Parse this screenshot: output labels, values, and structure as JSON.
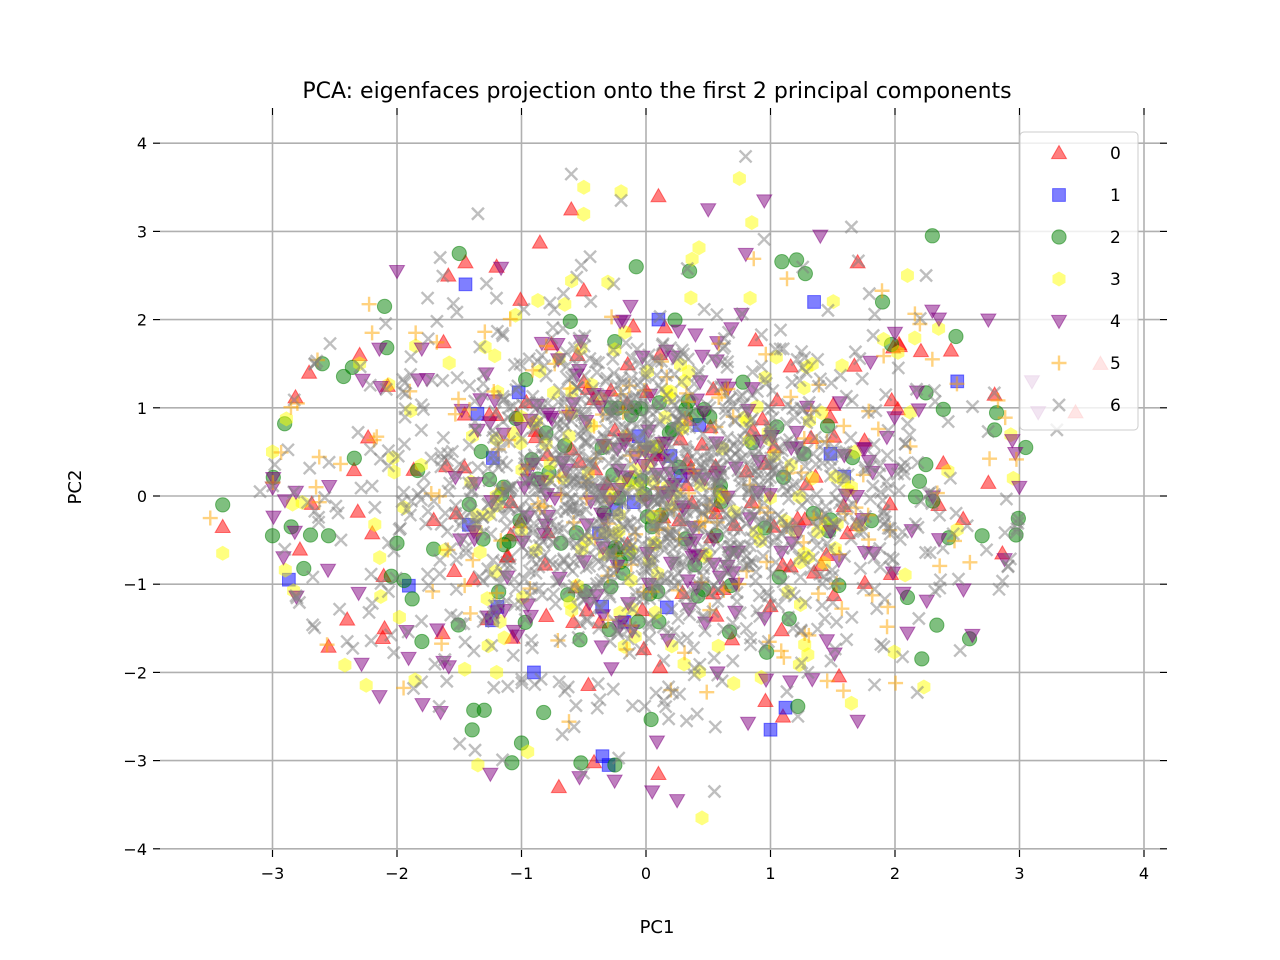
{
  "chart_data": {
    "type": "scatter",
    "title": "PCA: eigenfaces projection onto the first 2 principal components",
    "xlabel": "PC1",
    "ylabel": "PC2",
    "xlim": [
      -3.8,
      4.0
    ],
    "ylim": [
      -4.0,
      4.3
    ],
    "xticks": [
      -3,
      -2,
      -1,
      0,
      1,
      2,
      3,
      4
    ],
    "yticks": [
      -4,
      -3,
      -2,
      -1,
      0,
      1,
      2,
      3,
      4
    ],
    "xtick_labels": [
      "−3",
      "−2",
      "−1",
      "0",
      "1",
      "2",
      "3",
      "4"
    ],
    "ytick_labels": [
      "−4",
      "−3",
      "−2",
      "−1",
      "0",
      "1",
      "2",
      "3",
      "4"
    ],
    "grid": true,
    "legend_position": "top-right",
    "marker_alpha": 0.5,
    "series": [
      {
        "name": "0",
        "color": "#ff0000",
        "marker": "triangle-up",
        "count": 140,
        "points": [
          [
            -3.4,
            -0.35
          ],
          [
            -2.4,
            -1.4
          ],
          [
            -2.1,
            -1.5
          ],
          [
            -1.45,
            2.65
          ],
          [
            -0.6,
            3.25
          ],
          [
            0.1,
            3.4
          ],
          [
            2.45,
            1.65
          ],
          [
            2.8,
            1.15
          ],
          [
            3.65,
            1.5
          ],
          [
            3.45,
            0.95
          ],
          [
            -0.7,
            -3.3
          ],
          [
            0.1,
            -3.15
          ],
          [
            2.35,
            -0.1
          ],
          [
            1.7,
            2.65
          ],
          [
            2.75,
            0.15
          ],
          [
            -1.2,
            2.6
          ],
          [
            -2.3,
            1.6
          ],
          [
            1.1,
            -2.5
          ]
        ]
      },
      {
        "name": "1",
        "color": "#0000ff",
        "marker": "square",
        "count": 20,
        "points": [
          [
            -0.35,
            -2.95
          ],
          [
            -0.3,
            -3.05
          ],
          [
            1.0,
            -2.65
          ],
          [
            1.12,
            -2.4
          ],
          [
            2.5,
            1.3
          ],
          [
            -1.45,
            2.4
          ],
          [
            0.1,
            2.0
          ],
          [
            1.35,
            2.2
          ],
          [
            -0.9,
            -2.0
          ]
        ]
      },
      {
        "name": "2",
        "color": "#008000",
        "marker": "circle",
        "count": 130,
        "points": [
          [
            -3.4,
            -0.1
          ],
          [
            -3.0,
            -0.45
          ],
          [
            -2.85,
            -0.35
          ],
          [
            -2.1,
            2.15
          ],
          [
            -1.5,
            2.75
          ],
          [
            2.3,
            2.95
          ],
          [
            2.8,
            0.75
          ],
          [
            3.05,
            0.55
          ],
          [
            -2.6,
            1.5
          ],
          [
            -0.25,
            -3.05
          ],
          [
            2.7,
            -0.45
          ],
          [
            2.1,
            -1.15
          ],
          [
            -1.0,
            -2.8
          ],
          [
            1.9,
            2.2
          ],
          [
            -1.8,
            -1.65
          ],
          [
            -2.55,
            -0.45
          ],
          [
            0.35,
            2.55
          ]
        ]
      },
      {
        "name": "3",
        "color": "#ffff00",
        "marker": "hexagon",
        "count": 190,
        "points": [
          [
            -3.4,
            -0.65
          ],
          [
            -0.5,
            3.5
          ],
          [
            -0.2,
            3.45
          ],
          [
            0.75,
            3.6
          ],
          [
            0.45,
            -3.65
          ],
          [
            -1.35,
            -3.05
          ],
          [
            2.1,
            2.5
          ],
          [
            2.35,
            1.9
          ],
          [
            2.95,
            0.2
          ],
          [
            -3.0,
            0.5
          ],
          [
            -1.2,
            -2.0
          ],
          [
            1.3,
            -1.8
          ],
          [
            -2.3,
            1.5
          ],
          [
            0.85,
            3.1
          ],
          [
            -0.95,
            -2.9
          ],
          [
            1.65,
            -2.35
          ]
        ]
      },
      {
        "name": "4",
        "color": "#800080",
        "marker": "triangle-down",
        "count": 230,
        "points": [
          [
            -2.0,
            2.55
          ],
          [
            2.3,
            2.1
          ],
          [
            2.75,
            2.0
          ],
          [
            3.15,
            0.95
          ],
          [
            -1.65,
            -2.45
          ],
          [
            0.05,
            -3.35
          ],
          [
            0.25,
            -3.45
          ],
          [
            1.7,
            -2.55
          ],
          [
            2.1,
            -1.55
          ],
          [
            0.95,
            3.35
          ],
          [
            -2.9,
            -0.05
          ],
          [
            3.1,
            1.3
          ],
          [
            -1.25,
            -3.15
          ],
          [
            2.0,
            1.85
          ],
          [
            1.4,
            2.95
          ],
          [
            0.5,
            3.25
          ]
        ]
      },
      {
        "name": "5",
        "color": "#ffa500",
        "marker": "plus",
        "count": 160,
        "points": [
          [
            -3.5,
            -0.25
          ],
          [
            -2.8,
            1.05
          ],
          [
            -2.2,
            1.85
          ],
          [
            2.2,
            1.95
          ],
          [
            -2.65,
            0.1
          ],
          [
            -1.85,
            1.85
          ],
          [
            2.3,
            1.55
          ],
          [
            0.2,
            -2.2
          ],
          [
            -1.2,
            -1.1
          ],
          [
            0.7,
            0.9
          ],
          [
            1.6,
            -0.2
          ],
          [
            -0.8,
            1.7
          ]
        ]
      },
      {
        "name": "6",
        "color": "#808080",
        "marker": "x",
        "count": 1400,
        "points": [
          [
            -0.6,
            3.65
          ],
          [
            0.8,
            3.85
          ],
          [
            -1.35,
            3.2
          ],
          [
            1.65,
            3.05
          ],
          [
            -2.4,
            -1.65
          ],
          [
            0.55,
            -3.35
          ],
          [
            3.3,
            0.75
          ],
          [
            -3.1,
            0.05
          ],
          [
            2.25,
            2.5
          ],
          [
            -1.6,
            -2.1
          ],
          [
            1.3,
            -2.0
          ],
          [
            -0.2,
            3.35
          ]
        ]
      }
    ]
  }
}
